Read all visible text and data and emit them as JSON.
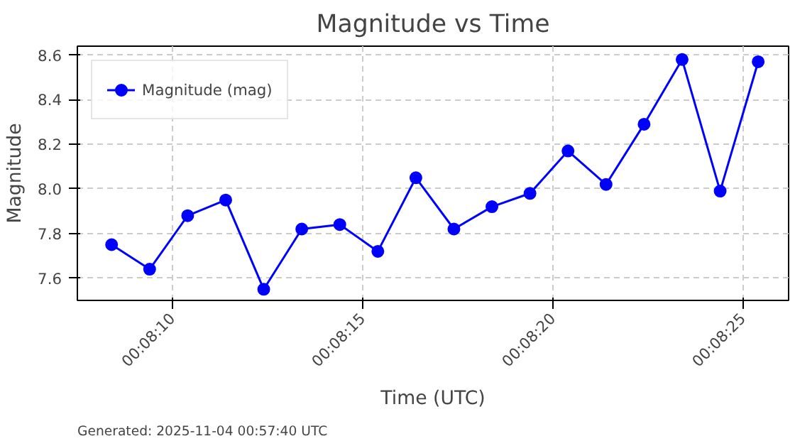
{
  "chart_data": {
    "type": "line",
    "title": "Magnitude vs Time",
    "xlabel": "Time (UTC)",
    "ylabel": "Magnitude",
    "x": [
      488.4,
      489.4,
      490.4,
      491.4,
      492.4,
      493.4,
      494.4,
      495.4,
      496.4,
      497.4,
      498.4,
      499.4,
      500.4,
      501.4,
      502.4,
      503.4,
      504.4,
      505.4
    ],
    "series": [
      {
        "name": "Magnitude (mag)",
        "color": "#0000ff",
        "values": [
          7.75,
          7.64,
          7.88,
          7.95,
          7.55,
          7.82,
          7.84,
          7.72,
          8.05,
          7.82,
          7.92,
          7.98,
          8.17,
          8.02,
          8.29,
          8.58,
          7.99,
          8.57
        ]
      }
    ],
    "xlim": [
      487.5,
      506.2
    ],
    "ylim": [
      7.5,
      8.64
    ],
    "xticks": [
      {
        "value": 490,
        "label": "00:08:10"
      },
      {
        "value": 495,
        "label": "00:08:15"
      },
      {
        "value": 500,
        "label": "00:08:20"
      },
      {
        "value": 505,
        "label": "00:08:25"
      }
    ],
    "yticks": [
      7.6,
      7.8,
      {
        "value": 8,
        "label": "8.0"
      },
      8.2,
      8.4,
      8.6
    ],
    "grid": true,
    "legend": "top left",
    "marker": "circle",
    "line_style": "solid",
    "annotations": [
      "Generated: 2025-11-04 00:57:40 UTC"
    ]
  }
}
